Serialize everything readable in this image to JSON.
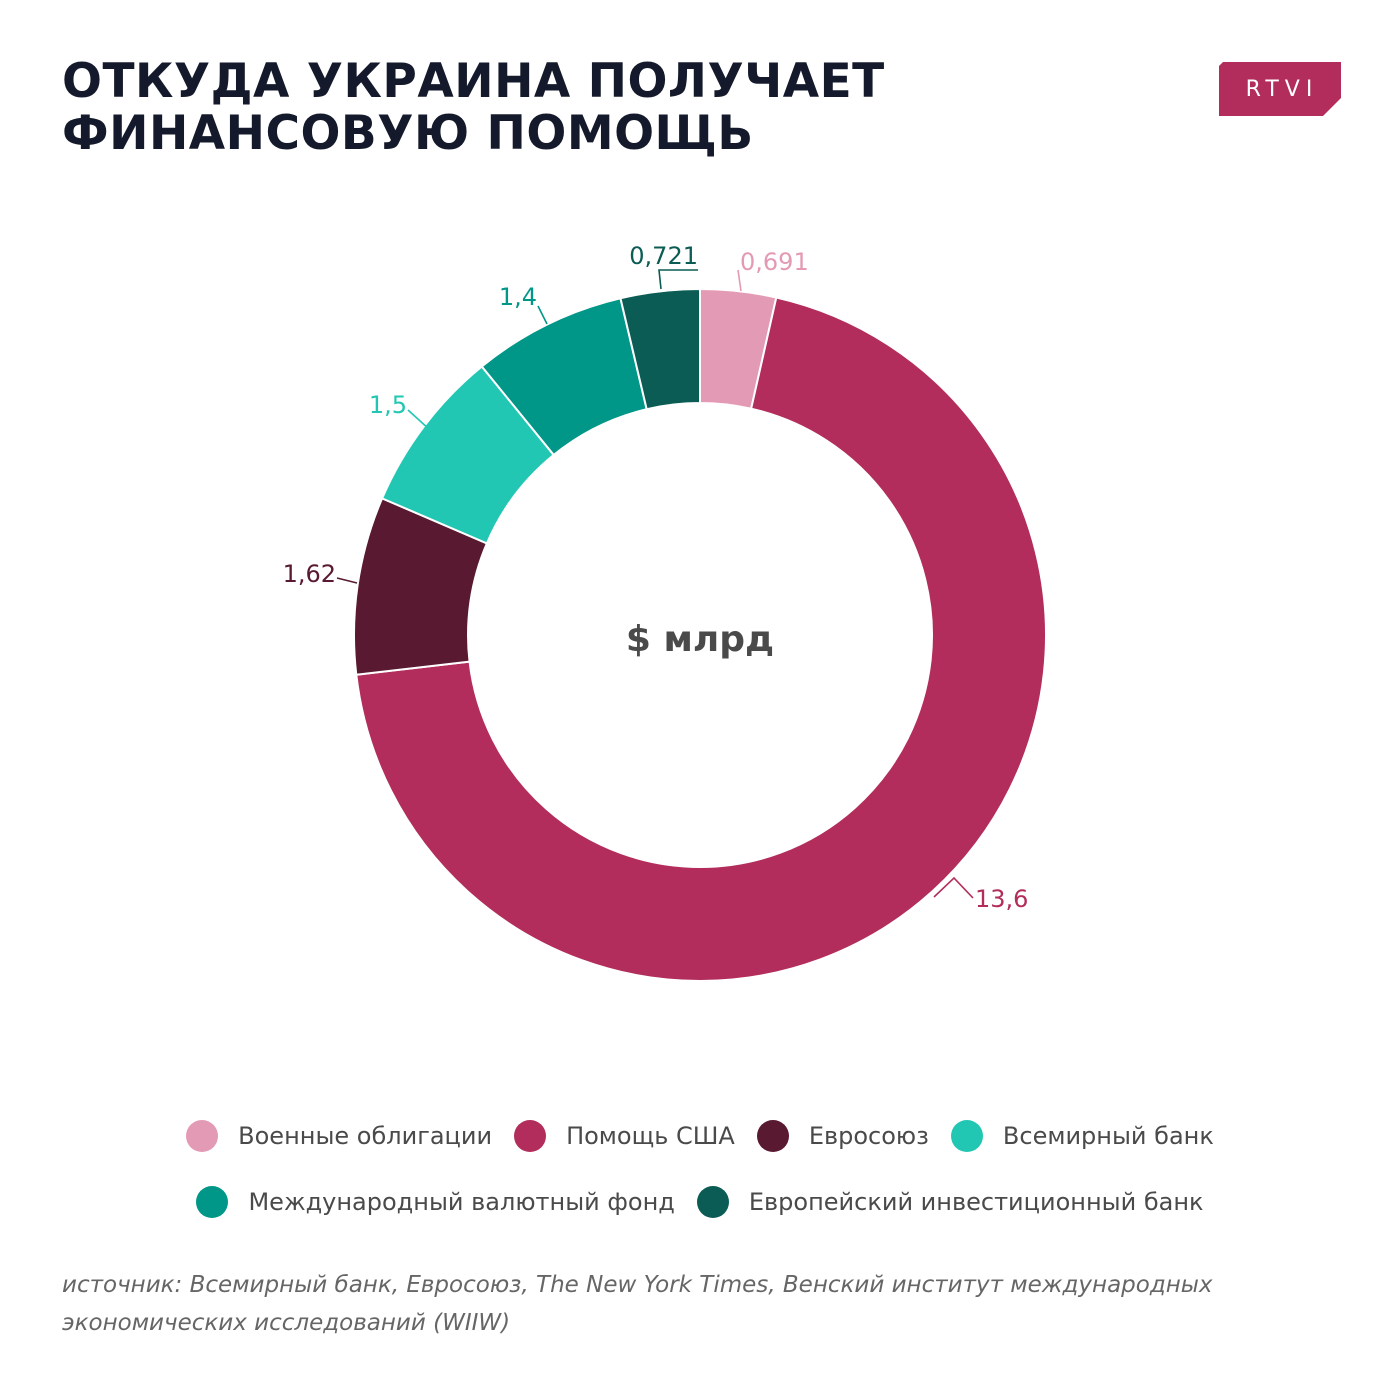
{
  "header": {
    "title_line1": "ОТКУДА УКРАИНА ПОЛУЧАЕТ",
    "title_line2": "ФИНАНСОВУЮ ПОМОЩЬ",
    "logo_text": "RTVI",
    "logo_color": "#b22d5b"
  },
  "chart_data": {
    "type": "pie",
    "variant": "donut",
    "title": "ОТКУДА УКРАИНА ПОЛУЧАЕТ ФИНАНСОВУЮ ПОМОЩЬ",
    "center_label": "$ млрд",
    "legend_position": "bottom",
    "slices": [
      {
        "name": "Военные облигации",
        "value": 0.691,
        "label": "0,691",
        "color": "#e39ab4",
        "label_color": "#e39ab4"
      },
      {
        "name": "Помощь США",
        "value": 13.6,
        "label": "13,6",
        "color": "#b22d5b",
        "label_color": "#b22d5b"
      },
      {
        "name": "Евросоюз",
        "value": 1.62,
        "label": "1,62",
        "color": "#581931",
        "label_color": "#581931"
      },
      {
        "name": "Всемирный банк",
        "value": 1.5,
        "label": "1,5",
        "color": "#22c7b3",
        "label_color": "#22c7b3"
      },
      {
        "name": "Международный валютный фонд",
        "value": 1.4,
        "label": "1,4",
        "color": "#009688",
        "label_color": "#009688"
      },
      {
        "name": "Европейский инвестиционный банк",
        "value": 0.721,
        "label": "0,721",
        "color": "#0b5c54",
        "label_color": "#0b5c54"
      }
    ]
  },
  "legend": {
    "rows": [
      [
        0,
        1,
        2,
        3
      ],
      [
        4,
        5
      ]
    ]
  },
  "source": {
    "line1": "источник: Всемирный банк, Евросоюз, The New York Times, Венский институт международных",
    "line2": "экономических исследований (WIIW)"
  }
}
